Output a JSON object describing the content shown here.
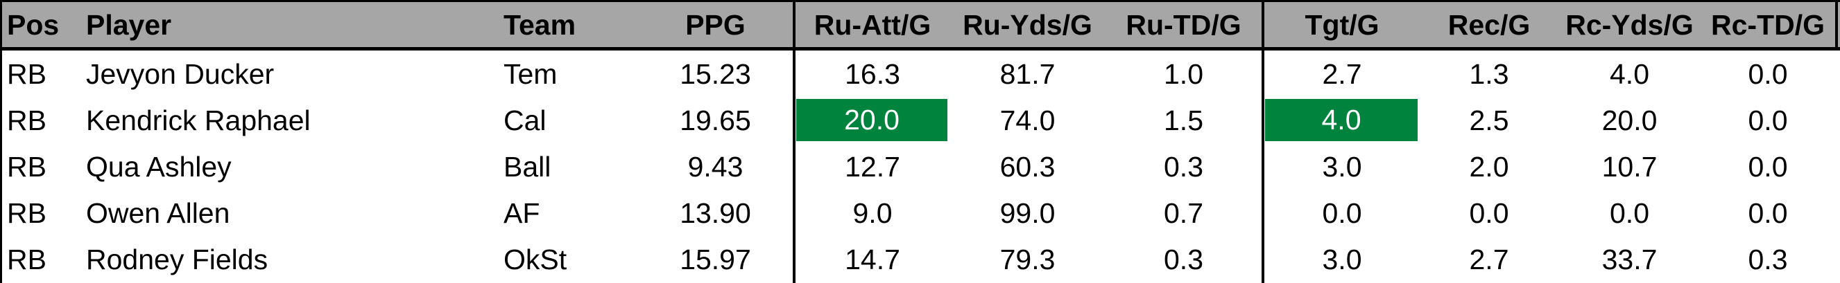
{
  "table": {
    "columns": [
      "Pos",
      "Player",
      "Team",
      "PPG",
      "Ru-Att/G",
      "Ru-Yds/G",
      "Ru-TD/G",
      "Tgt/G",
      "Rec/G",
      "Rc-Yds/G",
      "Rc-TD/G"
    ],
    "rows": [
      [
        "RB",
        "Jevyon Ducker",
        "Tem",
        "15.23",
        "16.3",
        "81.7",
        "1.0",
        "2.7",
        "1.3",
        "4.0",
        "0.0"
      ],
      [
        "RB",
        "Kendrick Raphael",
        "Cal",
        "19.65",
        "20.0",
        "74.0",
        "1.5",
        "4.0",
        "2.5",
        "20.0",
        "0.0"
      ],
      [
        "RB",
        "Qua Ashley",
        "Ball",
        "9.43",
        "12.7",
        "60.3",
        "0.3",
        "3.0",
        "2.0",
        "10.7",
        "0.0"
      ],
      [
        "RB",
        "Owen Allen",
        "AF",
        "13.90",
        "9.0",
        "99.0",
        "0.7",
        "0.0",
        "0.0",
        "0.0",
        "0.0"
      ],
      [
        "RB",
        "Rodney Fields",
        "OkSt",
        "15.97",
        "14.7",
        "79.3",
        "0.3",
        "3.0",
        "2.7",
        "33.7",
        "0.3"
      ]
    ],
    "highlights": [
      {
        "row": 1,
        "col": 4,
        "color": "#00843d"
      },
      {
        "row": 1,
        "col": 7,
        "color": "#00843d"
      }
    ],
    "header_color": "#a6a6a6"
  }
}
